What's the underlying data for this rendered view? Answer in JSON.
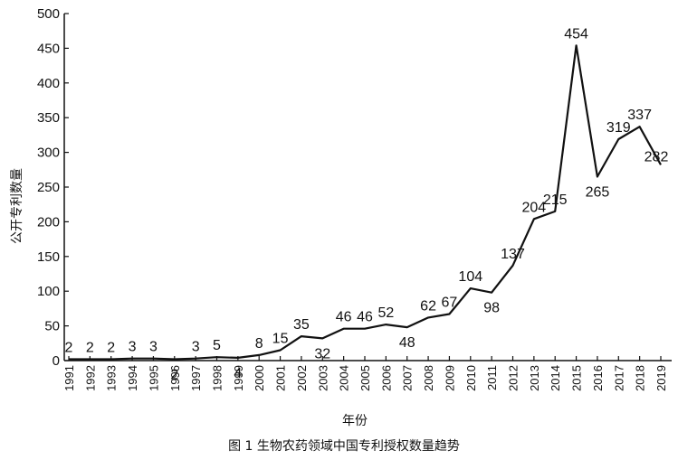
{
  "chart_data": {
    "type": "line",
    "title": "",
    "caption": "图 1  生物农药领域中国专利授权数量趋势",
    "xlabel": "年份",
    "ylabel": "公开专利数量",
    "ylim": [
      0,
      500
    ],
    "yticks": [
      0,
      50,
      100,
      150,
      200,
      250,
      300,
      350,
      400,
      450,
      500
    ],
    "grid": false,
    "legend": "none",
    "categories": [
      "1991",
      "1992",
      "1993",
      "1994",
      "1995",
      "1996",
      "1997",
      "1998",
      "1999",
      "2000",
      "2001",
      "2002",
      "2003",
      "2004",
      "2005",
      "2006",
      "2007",
      "2008",
      "2009",
      "2010",
      "2011",
      "2012",
      "2013",
      "2014",
      "2015",
      "2016",
      "2017",
      "2018",
      "2019"
    ],
    "series": [
      {
        "values": [
          2,
          2,
          2,
          3,
          3,
          2,
          3,
          5,
          4,
          8,
          15,
          35,
          32,
          46,
          46,
          52,
          48,
          62,
          67,
          104,
          98,
          137,
          204,
          215,
          454,
          265,
          319,
          337,
          282
        ]
      }
    ],
    "line_color": "#111111"
  }
}
